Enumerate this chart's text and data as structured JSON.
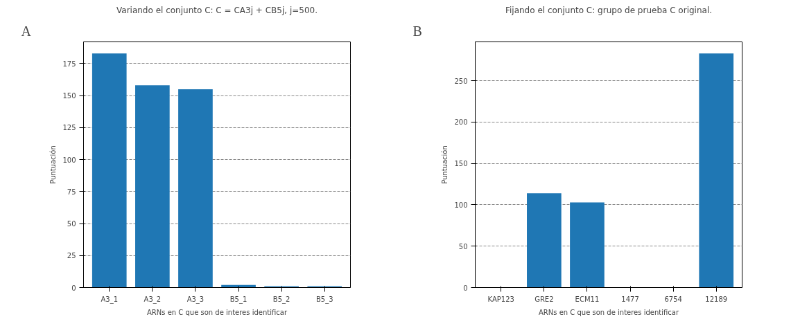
{
  "chart_data": [
    {
      "type": "bar",
      "title": "Variando el conjunto C: C = CA3j + CB5j, j=500.",
      "annotations": [
        "A"
      ],
      "xlabel": "ARNs en C que son de interes identificar",
      "ylabel": "Puntuación",
      "categories": [
        "A3_1",
        "A3_2",
        "A3_3",
        "B5_1",
        "B5_2",
        "B5_3"
      ],
      "values": [
        183,
        158,
        155,
        2,
        1,
        1
      ],
      "color": "#1f77b4",
      "ylim": [
        0,
        192
      ],
      "yticks": [
        0,
        25,
        50,
        75,
        100,
        125,
        150,
        175
      ],
      "grid": "y"
    },
    {
      "type": "bar",
      "title": "Fijando el conjunto C: grupo de prueba C original.",
      "annotations": [
        "B"
      ],
      "xlabel": "ARNs en C que son de interes identificar",
      "ylabel": "Puntuación",
      "categories": [
        "KAP123",
        "GRE2",
        "ECM11",
        "1477",
        "6754",
        "12189"
      ],
      "values": [
        0,
        114,
        103,
        0,
        0,
        283
      ],
      "color": "#1f77b4",
      "ylim": [
        0,
        297
      ],
      "yticks": [
        0,
        50,
        100,
        150,
        200,
        250
      ],
      "grid": "y"
    }
  ]
}
